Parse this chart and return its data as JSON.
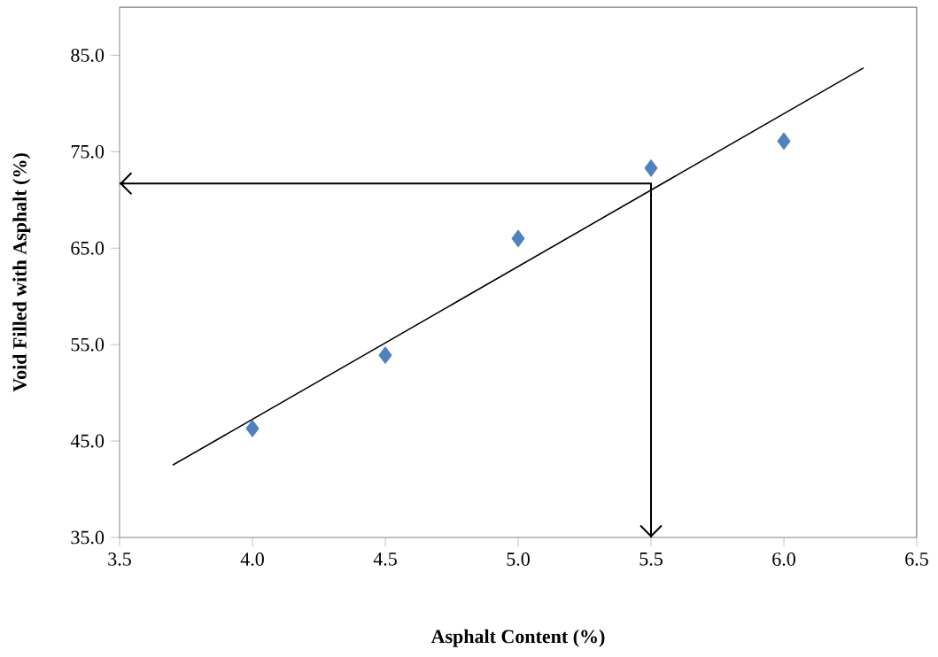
{
  "chart_data": {
    "type": "scatter",
    "xlabel": "Asphalt Content (%)",
    "ylabel": "Void Filled with Asphalt (%)",
    "xlim": [
      3.5,
      6.5
    ],
    "ylim": [
      35,
      90
    ],
    "xticks": [
      {
        "value": 3.5,
        "label": "3.5"
      },
      {
        "value": 4.0,
        "label": "4.0"
      },
      {
        "value": 4.5,
        "label": "4.5"
      },
      {
        "value": 5.0,
        "label": "5.0"
      },
      {
        "value": 5.5,
        "label": "5.5"
      },
      {
        "value": 6.0,
        "label": "6.0"
      },
      {
        "value": 6.5,
        "label": "6.5"
      }
    ],
    "yticks": [
      {
        "value": 35,
        "label": "35.0"
      },
      {
        "value": 45,
        "label": "45.0"
      },
      {
        "value": 55,
        "label": "55.0"
      },
      {
        "value": 65,
        "label": "65.0"
      },
      {
        "value": 75,
        "label": "75.0"
      },
      {
        "value": 85,
        "label": "85.0"
      }
    ],
    "series": [
      {
        "marker": "diamond",
        "color": "#4f81bd",
        "x": [
          4.0,
          4.5,
          5.0,
          5.5,
          6.0
        ],
        "values": [
          46.3,
          53.9,
          66.0,
          73.3,
          76.1
        ]
      },
      {
        "type": "line",
        "color": "#000000",
        "x": [
          3.7,
          6.3
        ],
        "values": [
          42.5,
          83.7
        ]
      },
      {
        "type": "line",
        "color": "#000000",
        "x": [
          3.5,
          5.5,
          5.5
        ],
        "values": [
          71.7,
          71.7,
          35
        ]
      }
    ]
  }
}
